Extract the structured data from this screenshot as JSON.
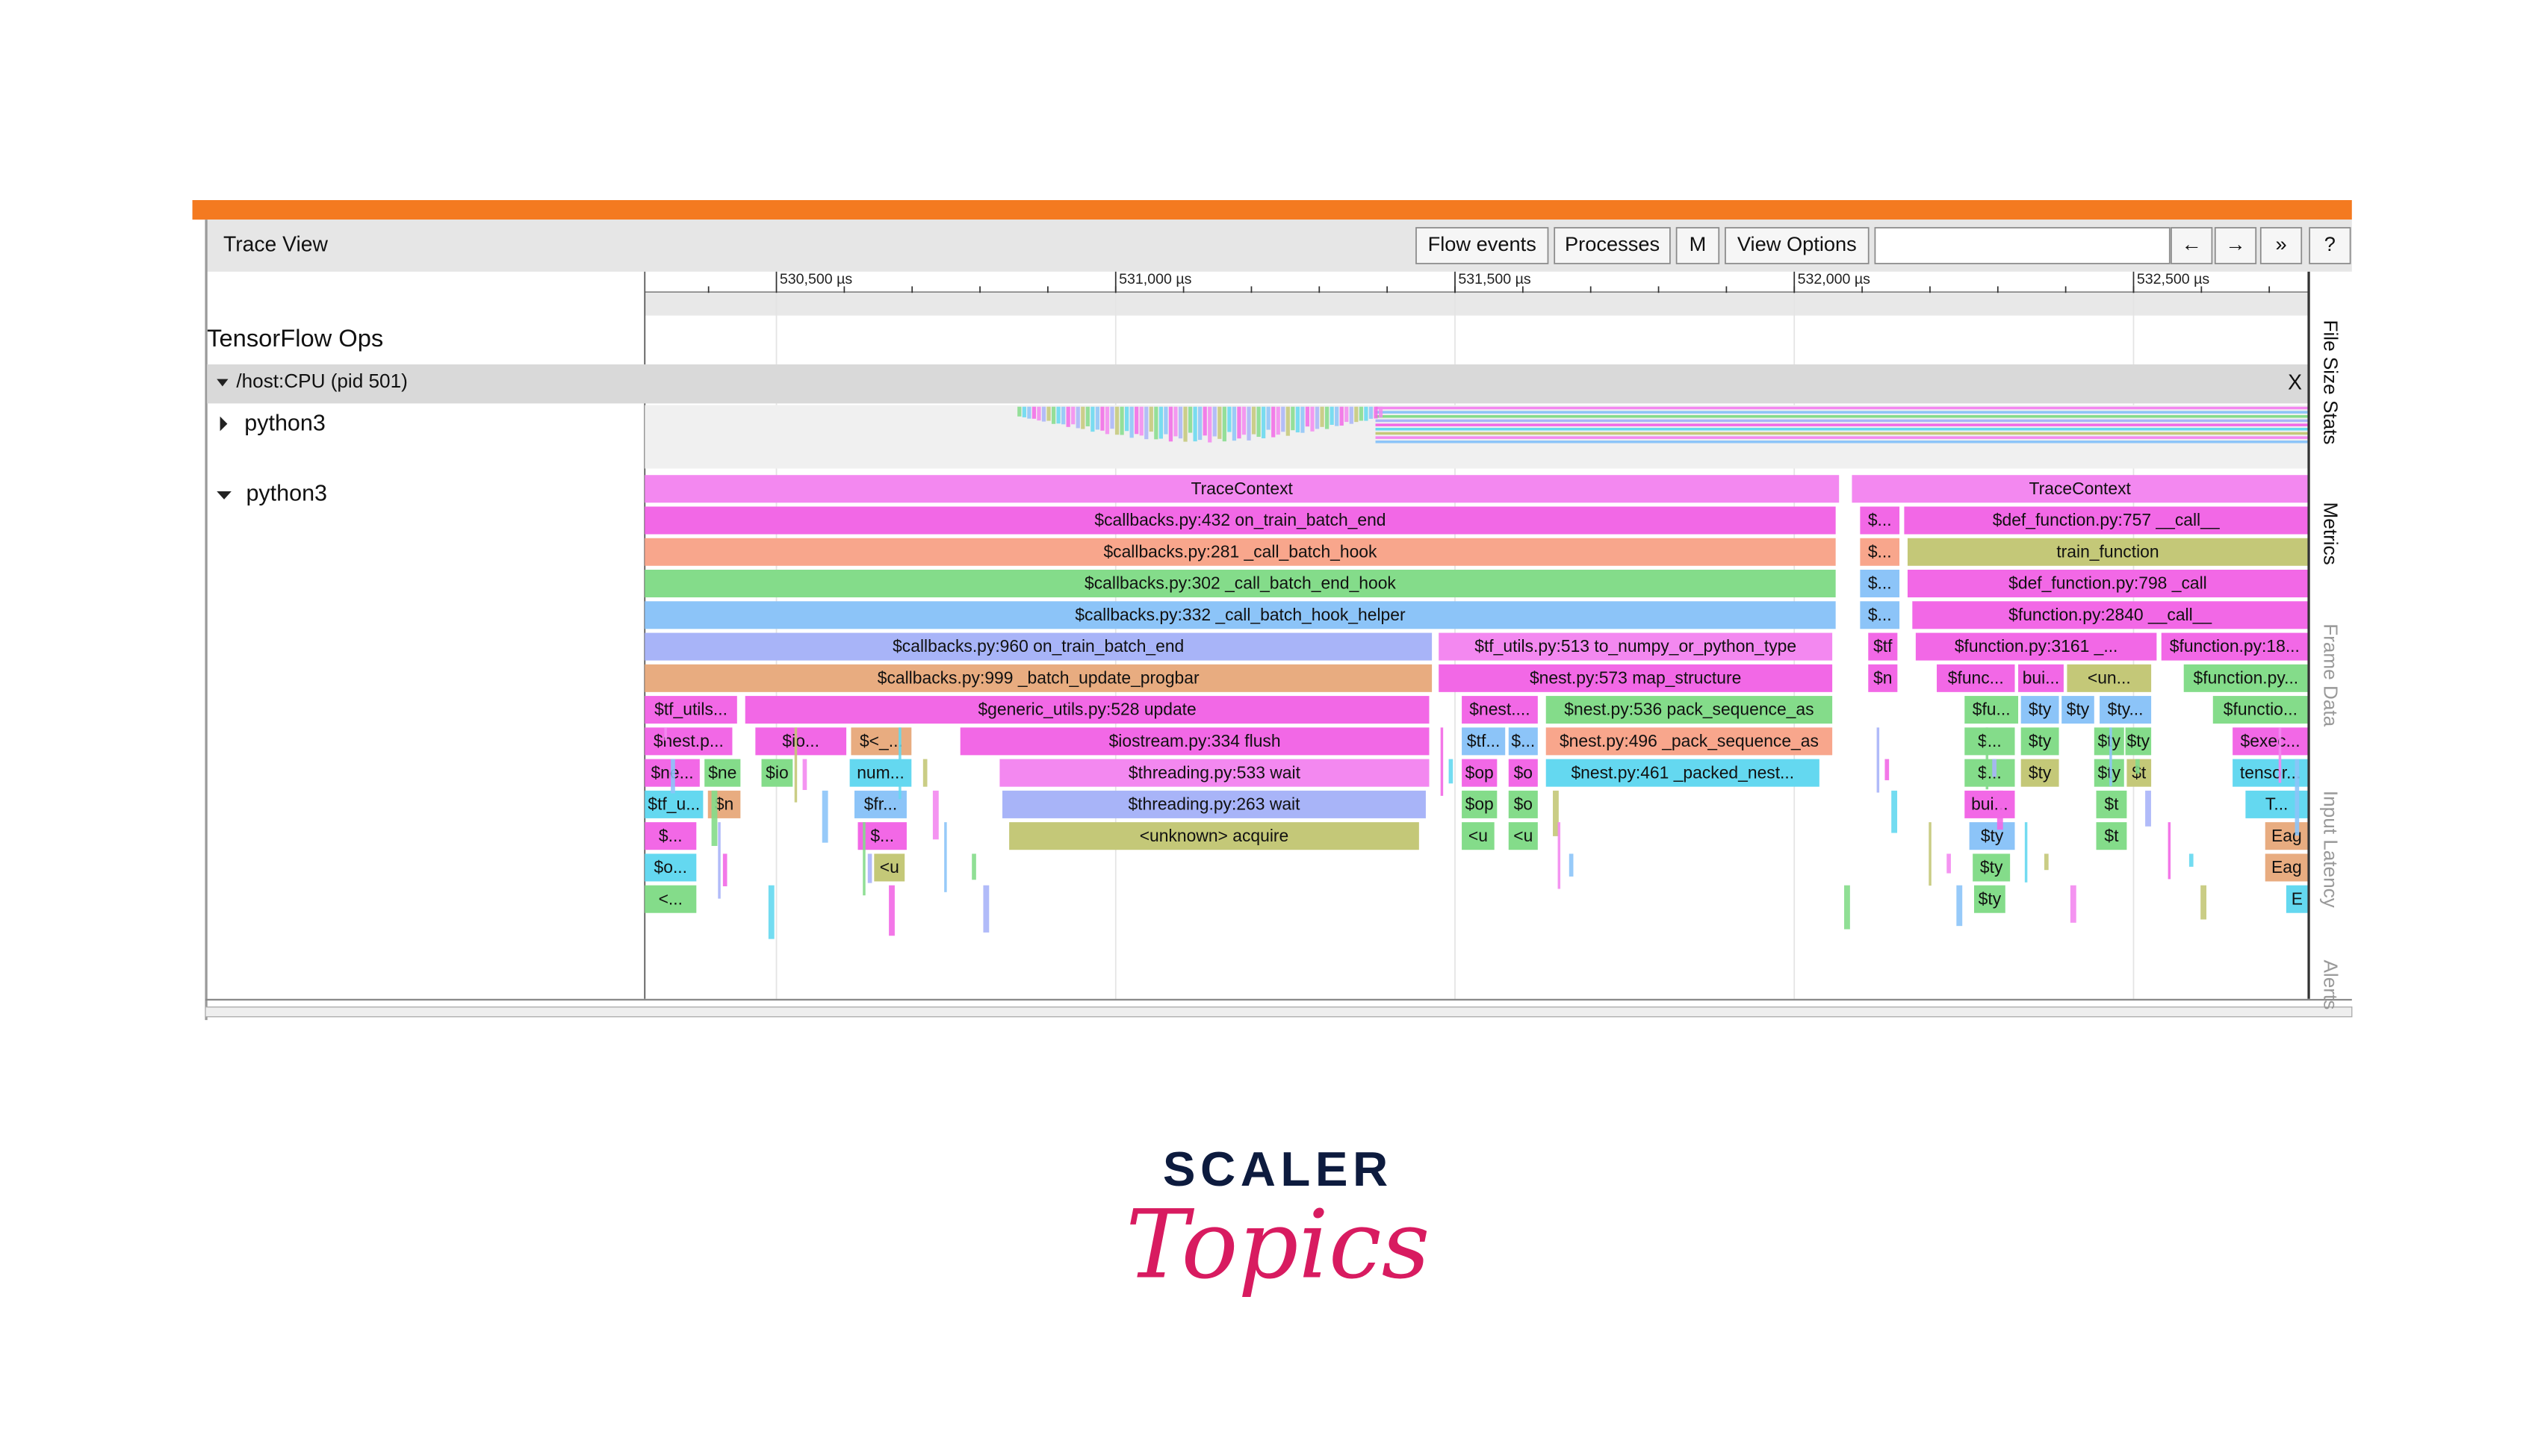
{
  "toolbar": {
    "title": "Trace View",
    "buttons": [
      "Flow events",
      "Processes",
      "M",
      "View Options",
      "←",
      "→",
      "»",
      "?"
    ]
  },
  "timeline": {
    "xlim": [
      530306,
      532757
    ],
    "ticks": [
      {
        "value": 530500,
        "label": "530,500 µs"
      },
      {
        "value": 531000,
        "label": "531,000 µs"
      },
      {
        "value": 531500,
        "label": "531,500 µs"
      },
      {
        "value": 532000,
        "label": "532,000 µs"
      },
      {
        "value": 532500,
        "label": "532,500 µs"
      }
    ]
  },
  "tracks": {
    "group": "TensorFlow Ops",
    "process": "/host:CPU (pid 501)",
    "close": "X",
    "threads": [
      "python3",
      "python3"
    ]
  },
  "side_tabs": [
    "File Size Stats",
    "Metrics",
    "Frame Data",
    "Input Latency",
    "Alerts"
  ],
  "events": [
    {
      "name": "TraceContext",
      "start": 530306,
      "end": 532066,
      "depth": 0,
      "color": "#f388f0"
    },
    {
      "name": "TraceContext",
      "start": 532085,
      "end": 532757,
      "depth": 0,
      "color": "#f388f0"
    },
    {
      "name": "$callbacks.py:432 on_train_batch_end",
      "start": 530306,
      "end": 532061,
      "depth": 1,
      "color": "#f268e6"
    },
    {
      "name": "$...",
      "start": 532097,
      "end": 532155,
      "depth": 1,
      "color": "#f268e6"
    },
    {
      "name": "$def_function.py:757 __call__",
      "start": 532162,
      "end": 532757,
      "depth": 1,
      "color": "#f268e6"
    },
    {
      "name": "$callbacks.py:281 _call_batch_hook",
      "start": 530306,
      "end": 532061,
      "depth": 2,
      "color": "#f8a68c"
    },
    {
      "name": "$...",
      "start": 532097,
      "end": 532155,
      "depth": 2,
      "color": "#f8a68c"
    },
    {
      "name": "train_function",
      "start": 532167,
      "end": 532757,
      "depth": 2,
      "color": "#c4c878"
    },
    {
      "name": "$callbacks.py:302 _call_batch_end_hook",
      "start": 530306,
      "end": 532061,
      "depth": 3,
      "color": "#84dc8a"
    },
    {
      "name": "$...",
      "start": 532097,
      "end": 532155,
      "depth": 3,
      "color": "#8cc4f8"
    },
    {
      "name": "$def_function.py:798 _call",
      "start": 532167,
      "end": 532757,
      "depth": 3,
      "color": "#f268e6"
    },
    {
      "name": "$callbacks.py:332 _call_batch_hook_helper",
      "start": 530306,
      "end": 532061,
      "depth": 4,
      "color": "#8cc4f8"
    },
    {
      "name": "$...",
      "start": 532097,
      "end": 532155,
      "depth": 4,
      "color": "#8cc4f8"
    },
    {
      "name": "$function.py:2840 __call__",
      "start": 532174,
      "end": 532757,
      "depth": 4,
      "color": "#f268e6"
    },
    {
      "name": "$callbacks.py:960 on_train_batch_end",
      "start": 530306,
      "end": 531466,
      "depth": 5,
      "color": "#a8b4f8"
    },
    {
      "name": "$tf_utils.py:513 to_numpy_or_python_type",
      "start": 531476,
      "end": 532056,
      "depth": 5,
      "color": "#f388f0"
    },
    {
      "name": "$tf",
      "start": 532109,
      "end": 532152,
      "depth": 5,
      "color": "#f268e6"
    },
    {
      "name": "$function.py:3161 _...",
      "start": 532179,
      "end": 532534,
      "depth": 5,
      "color": "#f268e6"
    },
    {
      "name": "$function.py:18...",
      "start": 532541,
      "end": 532757,
      "depth": 5,
      "color": "#f268e6"
    },
    {
      "name": "$callbacks.py:999 _batch_update_progbar",
      "start": 530306,
      "end": 531466,
      "depth": 6,
      "color": "#e8ac80"
    },
    {
      "name": "$nest.py:573 map_structure",
      "start": 531476,
      "end": 532056,
      "depth": 6,
      "color": "#f268e6"
    },
    {
      "name": "$n",
      "start": 532109,
      "end": 532152,
      "depth": 6,
      "color": "#f268e6"
    },
    {
      "name": "$func...",
      "start": 532210,
      "end": 532325,
      "depth": 6,
      "color": "#f268e6"
    },
    {
      "name": "bui...",
      "start": 532330,
      "end": 532397,
      "depth": 6,
      "color": "#f268e6"
    },
    {
      "name": "<un...",
      "start": 532402,
      "end": 532526,
      "depth": 6,
      "color": "#c4c878"
    },
    {
      "name": "$function.py...",
      "start": 532574,
      "end": 532757,
      "depth": 6,
      "color": "#84dc8a"
    },
    {
      "name": "$tf_utils...",
      "start": 530306,
      "end": 530442,
      "depth": 7,
      "color": "#f268e6"
    },
    {
      "name": "$generic_utils.py:528 update",
      "start": 530454,
      "end": 531462,
      "depth": 7,
      "color": "#f268e6"
    },
    {
      "name": "$nest....",
      "start": 531510,
      "end": 531622,
      "depth": 7,
      "color": "#f268e6"
    },
    {
      "name": "$nest.py:536 pack_sequence_as",
      "start": 531634,
      "end": 532056,
      "depth": 7,
      "color": "#84dc8a"
    },
    {
      "name": "$fu...",
      "start": 532251,
      "end": 532330,
      "depth": 7,
      "color": "#84dc8a"
    },
    {
      "name": "$ty",
      "start": 532334,
      "end": 532390,
      "depth": 7,
      "color": "#8cc4f8"
    },
    {
      "name": "$ty",
      "start": 532394,
      "end": 532442,
      "depth": 7,
      "color": "#8cc4f8"
    },
    {
      "name": "$ty...",
      "start": 532450,
      "end": 532526,
      "depth": 7,
      "color": "#8cc4f8"
    },
    {
      "name": "$functio...",
      "start": 532617,
      "end": 532757,
      "depth": 7,
      "color": "#84dc8a"
    },
    {
      "name": "$nest.p...",
      "start": 530306,
      "end": 530435,
      "depth": 8,
      "color": "#f268e6"
    },
    {
      "name": "$io...",
      "start": 530469,
      "end": 530603,
      "depth": 8,
      "color": "#f268e6"
    },
    {
      "name": "$<_...",
      "start": 530610,
      "end": 530699,
      "depth": 8,
      "color": "#e8ac80"
    },
    {
      "name": "$iostream.py:334 flush",
      "start": 530771,
      "end": 531462,
      "depth": 8,
      "color": "#f268e6"
    },
    {
      "name": "$tf...",
      "start": 531510,
      "end": 531574,
      "depth": 8,
      "color": "#8cc4f8"
    },
    {
      "name": "$...",
      "start": 531579,
      "end": 531622,
      "depth": 8,
      "color": "#8cc4f8"
    },
    {
      "name": "$nest.py:496 _pack_sequence_as",
      "start": 531634,
      "end": 532056,
      "depth": 8,
      "color": "#f8a68c"
    },
    {
      "name": "$...",
      "start": 532251,
      "end": 532325,
      "depth": 8,
      "color": "#84dc8a"
    },
    {
      "name": "$ty",
      "start": 532334,
      "end": 532390,
      "depth": 8,
      "color": "#84dc8a"
    },
    {
      "name": "$ty",
      "start": 532442,
      "end": 532486,
      "depth": 8,
      "color": "#84dc8a"
    },
    {
      "name": "$ty",
      "start": 532488,
      "end": 532526,
      "depth": 8,
      "color": "#84dc8a"
    },
    {
      "name": "$exec...",
      "start": 532646,
      "end": 532757,
      "depth": 8,
      "color": "#f268e6"
    },
    {
      "name": "$ne...",
      "start": 530306,
      "end": 530387,
      "depth": 9,
      "color": "#f268e6"
    },
    {
      "name": "$ne",
      "start": 530394,
      "end": 530447,
      "depth": 9,
      "color": "#84dc8a"
    },
    {
      "name": "$io",
      "start": 530478,
      "end": 530524,
      "depth": 9,
      "color": "#84dc8a"
    },
    {
      "name": "num...",
      "start": 530608,
      "end": 530699,
      "depth": 9,
      "color": "#64d8f0"
    },
    {
      "name": "$threading.py:533 wait",
      "start": 530829,
      "end": 531462,
      "depth": 9,
      "color": "#f388f0"
    },
    {
      "name": "$op",
      "start": 531510,
      "end": 531562,
      "depth": 9,
      "color": "#f268e6"
    },
    {
      "name": "$o",
      "start": 531579,
      "end": 531622,
      "depth": 9,
      "color": "#f268e6"
    },
    {
      "name": "$nest.py:461 _packed_nest...",
      "start": 531634,
      "end": 532037,
      "depth": 9,
      "color": "#64d8f0"
    },
    {
      "name": "$...",
      "start": 532251,
      "end": 532325,
      "depth": 9,
      "color": "#84dc8a"
    },
    {
      "name": "$ty",
      "start": 532334,
      "end": 532390,
      "depth": 9,
      "color": "#c4c878"
    },
    {
      "name": "$ty",
      "start": 532442,
      "end": 532486,
      "depth": 9,
      "color": "#84dc8a"
    },
    {
      "name": "$t",
      "start": 532490,
      "end": 532526,
      "depth": 9,
      "color": "#c4c878"
    },
    {
      "name": "tensor...",
      "start": 532646,
      "end": 532757,
      "depth": 9,
      "color": "#64d8f0"
    },
    {
      "name": "$tf_u...",
      "start": 530306,
      "end": 530392,
      "depth": 10,
      "color": "#64d8f0"
    },
    {
      "name": "$n",
      "start": 530399,
      "end": 530447,
      "depth": 10,
      "color": "#e8ac80"
    },
    {
      "name": "$fr...",
      "start": 530615,
      "end": 530692,
      "depth": 10,
      "color": "#8cc4f8"
    },
    {
      "name": "$threading.py:263 wait",
      "start": 530833,
      "end": 531457,
      "depth": 10,
      "color": "#a8b4f8"
    },
    {
      "name": "$op",
      "start": 531510,
      "end": 531562,
      "depth": 10,
      "color": "#84dc8a"
    },
    {
      "name": "$o",
      "start": 531579,
      "end": 531622,
      "depth": 10,
      "color": "#84dc8a"
    },
    {
      "name": "bui...",
      "start": 532251,
      "end": 532325,
      "depth": 10,
      "color": "#f268e6"
    },
    {
      "name": "$t",
      "start": 532445,
      "end": 532490,
      "depth": 10,
      "color": "#84dc8a"
    },
    {
      "name": "T...",
      "start": 532665,
      "end": 532757,
      "depth": 10,
      "color": "#64d8f0"
    },
    {
      "name": "$...",
      "start": 530306,
      "end": 530382,
      "depth": 11,
      "color": "#f268e6"
    },
    {
      "name": "$...",
      "start": 530620,
      "end": 530692,
      "depth": 11,
      "color": "#f268e6"
    },
    {
      "name": "<unknown> acquire",
      "start": 530843,
      "end": 531447,
      "depth": 11,
      "color": "#c4c878"
    },
    {
      "name": "<u",
      "start": 531510,
      "end": 531558,
      "depth": 11,
      "color": "#84dc8a"
    },
    {
      "name": "<u",
      "start": 531579,
      "end": 531622,
      "depth": 11,
      "color": "#84dc8a"
    },
    {
      "name": "$ty",
      "start": 532258,
      "end": 532325,
      "depth": 11,
      "color": "#8cc4f8"
    },
    {
      "name": "$t",
      "start": 532445,
      "end": 532490,
      "depth": 11,
      "color": "#84dc8a"
    },
    {
      "name": "Eag",
      "start": 532694,
      "end": 532757,
      "depth": 11,
      "color": "#e8ac80"
    },
    {
      "name": "$o...",
      "start": 530306,
      "end": 530382,
      "depth": 12,
      "color": "#64d8f0"
    },
    {
      "name": "<u",
      "start": 530644,
      "end": 530689,
      "depth": 12,
      "color": "#c4c878"
    },
    {
      "name": "$ty",
      "start": 532263,
      "end": 532318,
      "depth": 12,
      "color": "#84dc8a"
    },
    {
      "name": "Eag",
      "start": 532694,
      "end": 532757,
      "depth": 12,
      "color": "#e8ac80"
    },
    {
      "name": "<...",
      "start": 530306,
      "end": 530382,
      "depth": 13,
      "color": "#84dc8a"
    },
    {
      "name": "$ty",
      "start": 532265,
      "end": 532311,
      "depth": 13,
      "color": "#84dc8a"
    },
    {
      "name": "E",
      "start": 532725,
      "end": 532757,
      "depth": 13,
      "color": "#64d8f0"
    }
  ],
  "logo": {
    "brand": "SCALER",
    "product": "Topics"
  }
}
